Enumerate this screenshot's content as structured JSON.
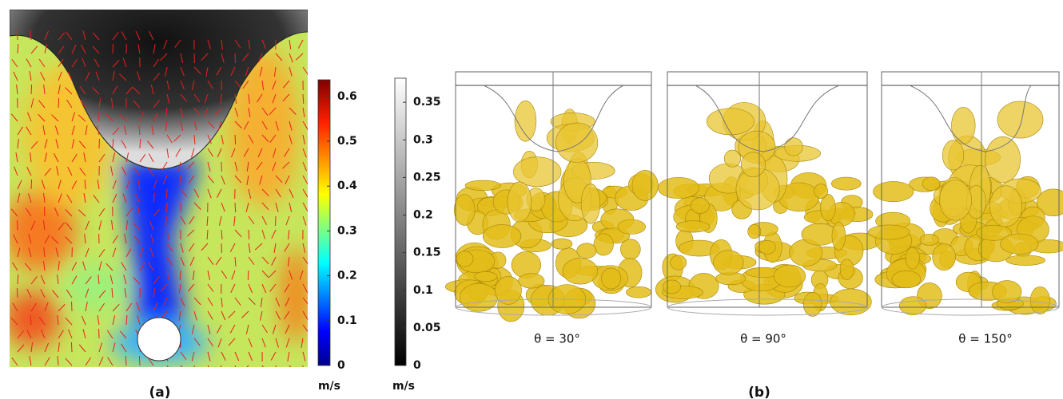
{
  "panel_a": {
    "label": "(a)",
    "velocity_colorbar": {
      "unit": "m/s",
      "lim": [
        0,
        0.637
      ],
      "ticks": [
        0,
        0.1,
        0.2,
        0.3,
        0.4,
        0.5,
        0.6
      ]
    },
    "gray_colorbar": {
      "unit": "m/s",
      "lim": [
        0,
        0.382
      ],
      "ticks": [
        0,
        0.05,
        0.1,
        0.15,
        0.2,
        0.25,
        0.3,
        0.35
      ]
    }
  },
  "panel_b": {
    "label": "(b)",
    "views": [
      {
        "label": "θ = 30°"
      },
      {
        "label": "θ = 90°"
      },
      {
        "label": "θ = 150°"
      }
    ]
  }
}
